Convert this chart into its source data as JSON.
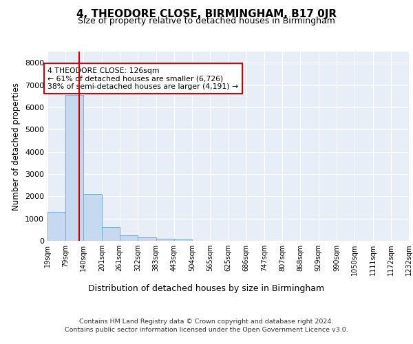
{
  "title": "4, THEODORE CLOSE, BIRMINGHAM, B17 0JR",
  "subtitle": "Size of property relative to detached houses in Birmingham",
  "xlabel": "Distribution of detached houses by size in Birmingham",
  "ylabel": "Number of detached properties",
  "footer_line1": "Contains HM Land Registry data © Crown copyright and database right 2024.",
  "footer_line2": "Contains public sector information licensed under the Open Government Licence v3.0.",
  "annotation_title": "4 THEODORE CLOSE: 126sqm",
  "annotation_line2": "← 61% of detached houses are smaller (6,726)",
  "annotation_line3": "38% of semi-detached houses are larger (4,191) →",
  "property_size": 126,
  "bin_edges": [
    19,
    79,
    140,
    201,
    261,
    322,
    383,
    443,
    504,
    565,
    625,
    686,
    747,
    807,
    868,
    929,
    990,
    1050,
    1111,
    1172,
    1232
  ],
  "bar_values": [
    1300,
    6550,
    2100,
    620,
    260,
    140,
    90,
    65,
    0,
    0,
    0,
    0,
    0,
    0,
    0,
    0,
    0,
    0,
    0,
    0
  ],
  "bar_color": "#c6d9f0",
  "bar_edge_color": "#7aabcf",
  "vline_color": "#cc0000",
  "annotation_box_edgecolor": "#cc0000",
  "background_color": "#e8eef8",
  "grid_color": "#ffffff",
  "ylim": [
    0,
    8500
  ],
  "yticks": [
    0,
    1000,
    2000,
    3000,
    4000,
    5000,
    6000,
    7000,
    8000
  ],
  "title_fontsize": 11,
  "subtitle_fontsize": 9
}
